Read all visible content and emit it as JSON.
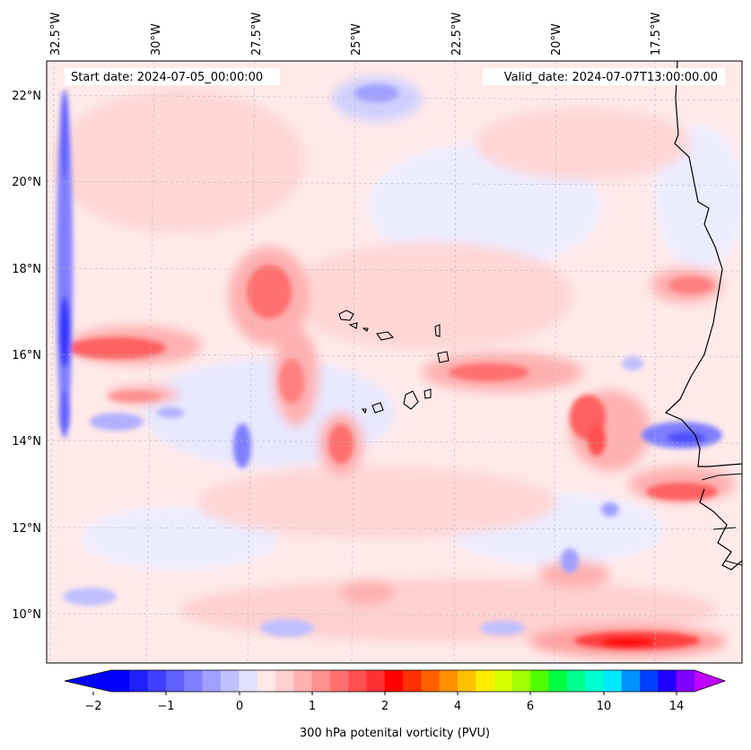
{
  "header": {
    "start_date": "Start date: 2024-07-05_00:00:00",
    "valid_date": "Valid_date: 2024-07-07T13:00:00.00"
  },
  "axes": {
    "longitude_labels": [
      "32.5°W",
      "30°W",
      "27.5°W",
      "25°W",
      "22.5°W",
      "20°W",
      "17.5°W"
    ],
    "latitude_labels": [
      "22°N",
      "20°N",
      "18°N",
      "16°N",
      "14°N",
      "12°N",
      "10°N"
    ]
  },
  "colorbar": {
    "tick_labels": [
      "−2",
      "−1",
      "0",
      "1",
      "2",
      "4",
      "6",
      "10",
      "14"
    ],
    "title": "300 hPa potenital vorticity (PVU)",
    "colors": [
      "#0000ff",
      "#2020ff",
      "#4040ff",
      "#6060ff",
      "#8080ff",
      "#a0a0ff",
      "#c0c0ff",
      "#e0e0ff",
      "#ffe8e8",
      "#ffd0d0",
      "#ffb0b0",
      "#ff9090",
      "#ff7070",
      "#ff5050",
      "#ff3030",
      "#ff0000",
      "#ff3000",
      "#ff6000",
      "#ff9000",
      "#ffc000",
      "#ffee00",
      "#d8ff00",
      "#a0ff00",
      "#50ff00",
      "#00ff40",
      "#00ff90",
      "#00ffd0",
      "#00e8ff",
      "#0090ff",
      "#0040ff",
      "#2000ff",
      "#8000ff"
    ],
    "min_arrow_color": "#0000ff",
    "max_arrow_color": "#c000ff"
  },
  "palette": {
    "background": "#ffeaea",
    "light_pink": "#ffd0d0",
    "pink": "#ffb0b0",
    "red": "#ff7070",
    "deep_red": "#ff4040",
    "light_blue": "#e4e4ff",
    "blue": "#a0a0ff",
    "deep_blue": "#4040ff",
    "coast": "#000000",
    "grid": "#bbbbbb"
  }
}
